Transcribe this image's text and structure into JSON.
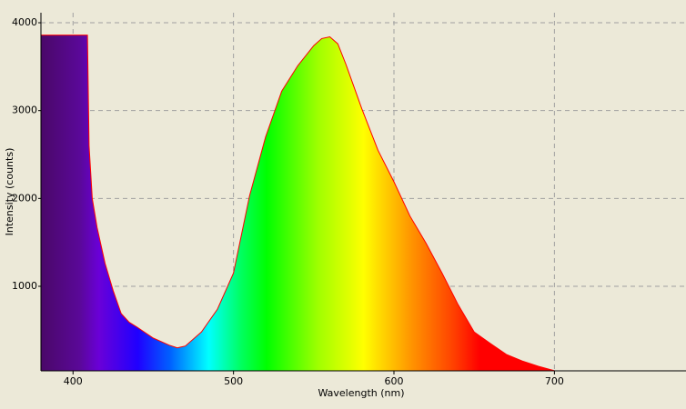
{
  "chart_data": {
    "type": "area",
    "x_label": "Wavelength (nm)",
    "y_label": "Intensity (counts)",
    "x": [
      380,
      408,
      409,
      410,
      412,
      415,
      420,
      425,
      430,
      435,
      440,
      450,
      460,
      465,
      470,
      480,
      490,
      500,
      510,
      520,
      530,
      540,
      550,
      555,
      560,
      565,
      570,
      580,
      590,
      600,
      610,
      620,
      630,
      640,
      650,
      660,
      670,
      680,
      690,
      700
    ],
    "values": [
      3860,
      3860,
      3860,
      2600,
      2000,
      1670,
      1260,
      950,
      690,
      590,
      535,
      410,
      330,
      300,
      320,
      480,
      740,
      1150,
      2030,
      2700,
      3220,
      3510,
      3740,
      3820,
      3840,
      3760,
      3530,
      3020,
      2550,
      2190,
      1800,
      1490,
      1150,
      790,
      480,
      350,
      225,
      150,
      90,
      40
    ],
    "color": "#ff0000",
    "xlim": [
      380,
      782
    ],
    "ylim": [
      38,
      4114
    ],
    "xticks": [
      400,
      500,
      600,
      700
    ],
    "yticks": [
      1000,
      2000,
      3000,
      4000
    ],
    "grid": true
  }
}
